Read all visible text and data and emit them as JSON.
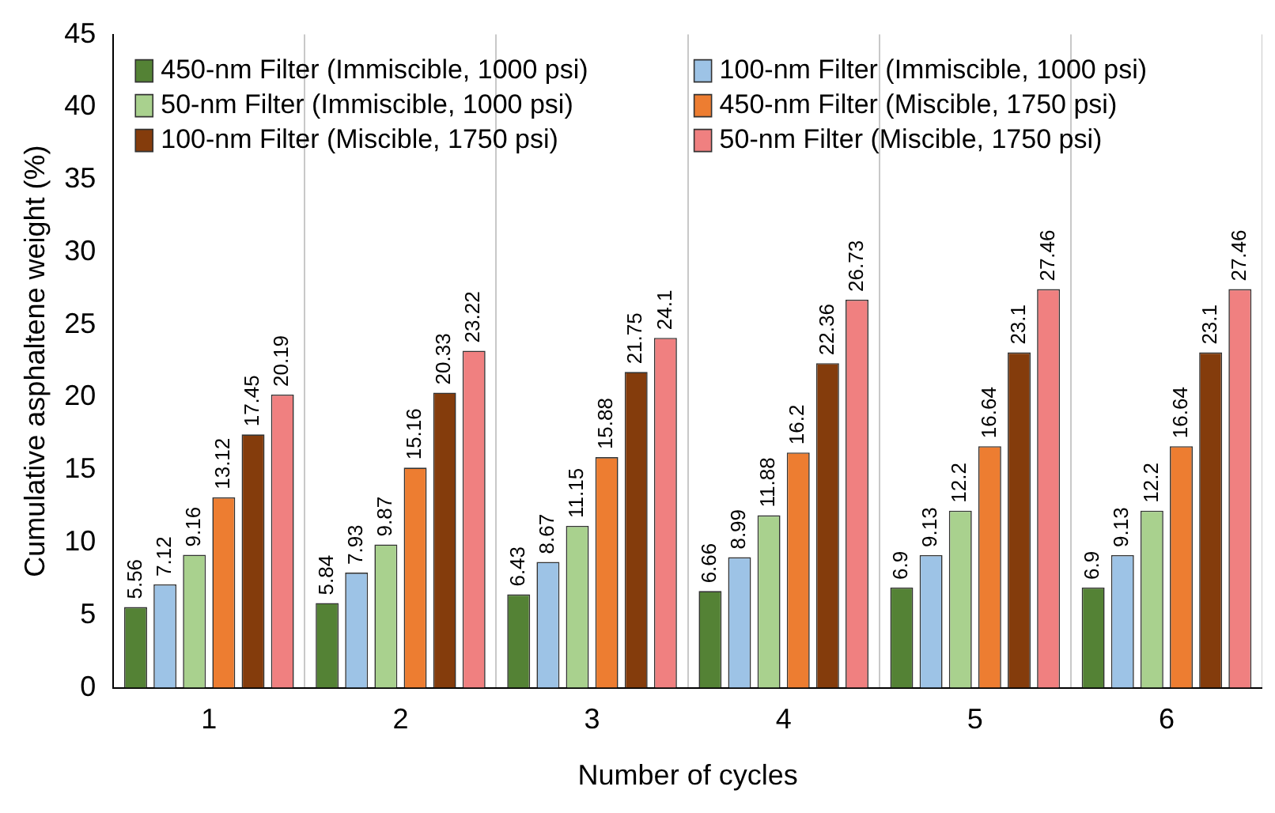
{
  "chart_data": {
    "type": "bar",
    "xlabel": "Number of cycles",
    "ylabel": "Cumulative asphaltene weight (%)",
    "categories": [
      "1",
      "2",
      "3",
      "4",
      "5",
      "6"
    ],
    "series": [
      {
        "name": "450-nm Filter (Immiscible, 1000 psi)",
        "color": "#548235",
        "values": [
          5.56,
          5.84,
          6.43,
          6.66,
          6.9,
          6.9
        ]
      },
      {
        "name": "100-nm Filter (Immiscible, 1000 psi)",
        "color": "#9dc3e6",
        "values": [
          7.12,
          7.93,
          8.67,
          8.99,
          9.13,
          9.13
        ]
      },
      {
        "name": "50-nm Filter (Immiscible, 1000 psi)",
        "color": "#a9d18e",
        "values": [
          9.16,
          9.87,
          11.15,
          11.88,
          12.2,
          12.2
        ]
      },
      {
        "name": "450-nm Filter (Miscible, 1750 psi)",
        "color": "#ed7d31",
        "values": [
          13.12,
          15.16,
          15.88,
          16.2,
          16.64,
          16.64
        ]
      },
      {
        "name": "100-nm Filter (Miscible, 1750 psi)",
        "color": "#843c0c",
        "values": [
          17.45,
          20.33,
          21.75,
          22.36,
          23.1,
          23.1
        ]
      },
      {
        "name": "50-nm Filter (Miscible, 1750 psi)",
        "color": "#f08080",
        "values": [
          20.19,
          23.22,
          24.1,
          26.73,
          27.46,
          27.46
        ]
      }
    ],
    "ylim": [
      0,
      45
    ],
    "yticks": [
      0,
      5,
      10,
      15,
      20,
      25,
      30,
      35,
      40,
      45
    ],
    "grid": "x",
    "legend": "top",
    "data_labels": true
  }
}
